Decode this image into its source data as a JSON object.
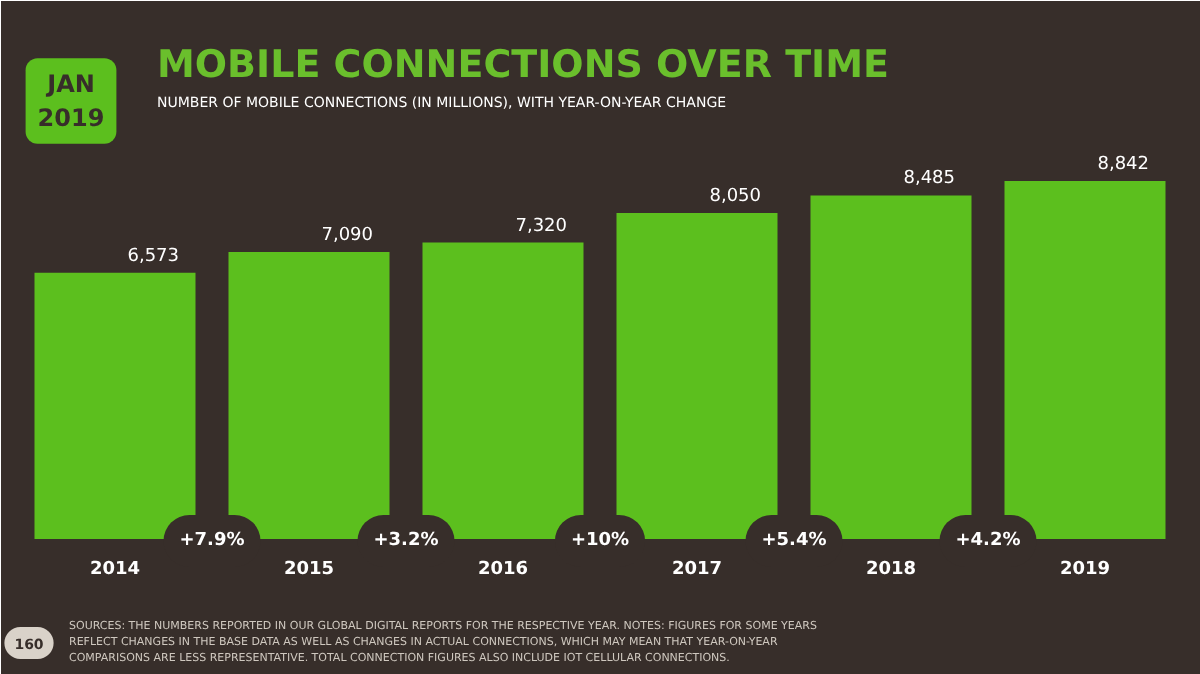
{
  "chart_data": {
    "type": "bar",
    "title": "MOBILE CONNECTIONS OVER TIME",
    "subtitle": "NUMBER OF MOBILE CONNECTIONS (IN MILLIONS), WITH YEAR-ON-YEAR CHANGE",
    "categories": [
      "2014",
      "2015",
      "2016",
      "2017",
      "2018",
      "2019"
    ],
    "values": [
      6573,
      7090,
      7320,
      8050,
      8485,
      8842
    ],
    "value_labels": [
      "6,573",
      "7,090",
      "7,320",
      "8,050",
      "8,485",
      "8,842"
    ],
    "color": "#5cbf1e",
    "grid": false,
    "annotations": [
      "JAN 2019",
      "160",
      "SOURCES: THE NUMBERS REPORTED IN OUR GLOBAL DIGITAL REPORTS FOR THE RESPECTIVE YEAR. NOTES: FIGURES FOR SOME YEARS REFLECT CHANGES IN THE BASE DATA AS WELL AS CHANGES IN ACTUAL CONNECTIONS, WHICH MAY MEAN THAT YEAR-ON-YEAR COMPARISONS ARE LESS REPRESENTATIVE. TOTAL CONNECTION FIGURES ALSO INCLUDE IOT CELLULAR CONNECTIONS.",
      "+7.9%",
      "+3.2%",
      "+10%",
      "+5.4%",
      "+4.2%"
    ]
  }
}
